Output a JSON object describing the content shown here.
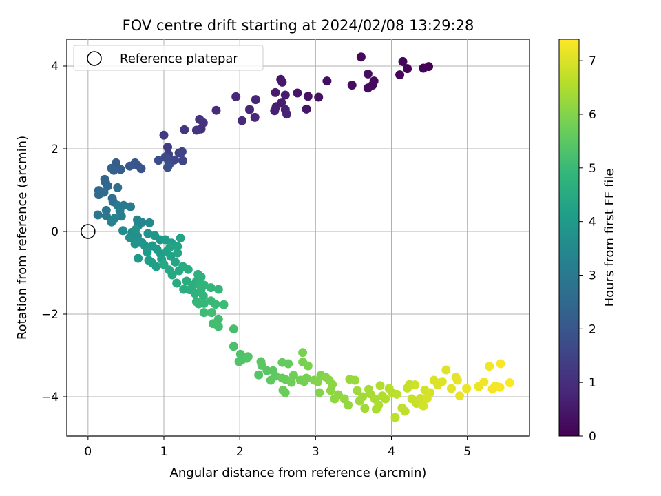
{
  "chart_data": {
    "type": "scatter",
    "title": "FOV centre drift starting at 2024/02/08 13:29:28",
    "xlabel": "Angular distance from reference (arcmin)",
    "ylabel": "Rotation from reference (arcmin)",
    "xlim": [
      -0.28,
      5.82
    ],
    "ylim": [
      -4.95,
      4.65
    ],
    "xticks": [
      0,
      1,
      2,
      3,
      4,
      5
    ],
    "yticks": [
      -4,
      -2,
      0,
      2,
      4
    ],
    "xtick_labels": [
      "0",
      "1",
      "2",
      "3",
      "4",
      "5"
    ],
    "ytick_labels": [
      "−4",
      "−2",
      "0",
      "2",
      "4"
    ],
    "grid": true,
    "legend": {
      "position": "top-left",
      "entries": [
        {
          "label": "Reference platepar",
          "marker": "open-circle"
        }
      ]
    },
    "reference_point": {
      "x": 0,
      "y": 0
    },
    "colorbar": {
      "label": "Hours from first FF file",
      "range": [
        0,
        7.4
      ],
      "ticks": [
        0,
        1,
        2,
        3,
        4,
        5,
        6,
        7
      ],
      "tick_labels": [
        "0",
        "1",
        "2",
        "3",
        "4",
        "5",
        "6",
        "7"
      ],
      "colormap": "viridis",
      "stops": [
        "#440154",
        "#482878",
        "#3e4989",
        "#31688e",
        "#26828e",
        "#1f9e89",
        "#35b779",
        "#6ece58",
        "#b5de2b",
        "#fde725"
      ]
    },
    "points": [
      [
        4.49,
        3.99,
        0.02
      ],
      [
        4.42,
        3.95,
        0.05
      ],
      [
        4.21,
        3.94,
        0.08
      ],
      [
        4.15,
        4.11,
        0.1
      ],
      [
        4.11,
        3.79,
        0.12
      ],
      [
        3.6,
        4.22,
        0.15
      ],
      [
        3.77,
        3.64,
        0.18
      ],
      [
        3.75,
        3.54,
        0.2
      ],
      [
        3.69,
        3.47,
        0.22
      ],
      [
        3.69,
        3.81,
        0.25
      ],
      [
        3.48,
        3.54,
        0.28
      ],
      [
        3.15,
        3.64,
        0.3
      ],
      [
        3.04,
        3.25,
        0.33
      ],
      [
        2.9,
        3.27,
        0.36
      ],
      [
        2.88,
        2.96,
        0.4
      ],
      [
        2.76,
        3.35,
        0.43
      ],
      [
        2.54,
        3.68,
        0.46
      ],
      [
        2.56,
        3.61,
        0.5
      ],
      [
        2.47,
        3.36,
        0.53
      ],
      [
        2.6,
        3.3,
        0.56
      ],
      [
        2.55,
        3.12,
        0.6
      ],
      [
        2.48,
        3.02,
        0.63
      ],
      [
        2.46,
        2.92,
        0.66
      ],
      [
        2.6,
        2.95,
        0.7
      ],
      [
        2.62,
        2.84,
        0.73
      ],
      [
        2.21,
        3.19,
        0.76
      ],
      [
        2.13,
        2.95,
        0.8
      ],
      [
        1.95,
        3.26,
        0.83
      ],
      [
        2.2,
        2.76,
        0.86
      ],
      [
        2.03,
        2.68,
        0.9
      ],
      [
        1.69,
        2.93,
        0.95
      ],
      [
        1.49,
        2.48,
        1.0
      ],
      [
        1.52,
        2.63,
        1.05
      ],
      [
        1.47,
        2.71,
        1.1
      ],
      [
        1.43,
        2.45,
        1.15
      ],
      [
        1.27,
        2.46,
        1.2
      ],
      [
        1.0,
        2.33,
        1.3
      ],
      [
        1.05,
        2.04,
        1.35
      ],
      [
        1.06,
        1.87,
        1.4
      ],
      [
        1.2,
        1.9,
        1.45
      ],
      [
        1.24,
        1.93,
        1.5
      ],
      [
        1.25,
        1.71,
        1.55
      ],
      [
        1.14,
        1.73,
        1.6
      ],
      [
        1.06,
        1.72,
        1.65
      ],
      [
        1.02,
        1.8,
        1.7
      ],
      [
        0.93,
        1.72,
        1.75
      ],
      [
        1.07,
        1.62,
        1.8
      ],
      [
        1.05,
        1.55,
        1.85
      ],
      [
        0.7,
        1.52,
        1.9
      ],
      [
        0.65,
        1.6,
        1.95
      ],
      [
        0.62,
        1.66,
        2.0
      ],
      [
        0.55,
        1.58,
        2.05
      ],
      [
        0.37,
        1.66,
        2.15
      ],
      [
        0.43,
        1.5,
        2.2
      ],
      [
        0.34,
        1.48,
        2.25
      ],
      [
        0.31,
        1.53,
        2.3
      ],
      [
        0.22,
        1.26,
        2.35
      ],
      [
        0.23,
        1.19,
        2.4
      ],
      [
        0.26,
        1.1,
        2.45
      ],
      [
        0.14,
        0.99,
        2.5
      ],
      [
        0.14,
        0.89,
        2.55
      ],
      [
        0.21,
        0.95,
        2.6
      ],
      [
        0.32,
        0.8,
        2.65
      ],
      [
        0.39,
        1.06,
        2.7
      ],
      [
        0.33,
        0.72,
        2.75
      ],
      [
        0.24,
        0.51,
        2.85
      ],
      [
        0.13,
        0.4,
        2.9
      ],
      [
        0.24,
        0.38,
        2.95
      ],
      [
        0.39,
        0.63,
        3.0
      ],
      [
        0.47,
        0.63,
        3.05
      ],
      [
        0.56,
        0.6,
        3.1
      ],
      [
        0.42,
        0.5,
        3.15
      ],
      [
        0.44,
        0.37,
        3.2
      ],
      [
        0.35,
        0.32,
        3.25
      ],
      [
        0.31,
        0.23,
        3.3
      ],
      [
        0.65,
        0.28,
        3.35
      ],
      [
        0.66,
        0.14,
        3.4
      ],
      [
        0.71,
        0.22,
        3.45
      ],
      [
        0.81,
        0.21,
        3.5
      ],
      [
        0.46,
        0.02,
        3.55
      ],
      [
        0.58,
        -0.02,
        3.6
      ],
      [
        0.65,
        -0.11,
        3.65
      ],
      [
        0.55,
        -0.15,
        3.7
      ],
      [
        0.63,
        0.05,
        3.75
      ],
      [
        0.67,
        -0.24,
        3.75
      ],
      [
        0.79,
        -0.05,
        3.8
      ],
      [
        0.62,
        -0.3,
        3.8
      ],
      [
        0.75,
        -0.35,
        3.85
      ],
      [
        0.71,
        -0.27,
        3.85
      ],
      [
        0.88,
        -0.1,
        3.9
      ],
      [
        0.95,
        -0.2,
        3.9
      ],
      [
        0.85,
        -0.35,
        3.95
      ],
      [
        0.66,
        -0.65,
        3.95
      ],
      [
        0.78,
        -0.5,
        4.0
      ],
      [
        0.91,
        -0.43,
        4.0
      ],
      [
        0.96,
        -0.55,
        4.05
      ],
      [
        1.02,
        -0.2,
        4.05
      ],
      [
        1.1,
        -0.28,
        4.1
      ],
      [
        0.8,
        -0.7,
        4.1
      ],
      [
        0.84,
        -0.75,
        4.15
      ],
      [
        0.9,
        -0.85,
        4.15
      ],
      [
        0.97,
        -0.67,
        4.2
      ],
      [
        1.04,
        -0.48,
        4.2
      ],
      [
        1.09,
        -0.6,
        4.25
      ],
      [
        1.08,
        -0.38,
        4.25
      ],
      [
        1.18,
        -0.36,
        4.3
      ],
      [
        1.22,
        -0.16,
        4.3
      ],
      [
        1.15,
        -0.74,
        4.35
      ],
      [
        1.18,
        -0.52,
        4.35
      ],
      [
        1.0,
        -0.8,
        4.4
      ],
      [
        1.07,
        -0.93,
        4.4
      ],
      [
        1.11,
        -1.05,
        4.45
      ],
      [
        1.2,
        -0.95,
        4.45
      ],
      [
        1.25,
        -0.85,
        4.5
      ],
      [
        1.17,
        -1.25,
        4.5
      ],
      [
        1.3,
        -1.2,
        4.55
      ],
      [
        1.32,
        -0.92,
        4.55
      ],
      [
        1.26,
        -1.4,
        4.6
      ],
      [
        1.34,
        -1.41,
        4.6
      ],
      [
        1.38,
        -1.3,
        4.65
      ],
      [
        1.43,
        -1.2,
        4.65
      ],
      [
        1.45,
        -1.04,
        4.7
      ],
      [
        1.49,
        -1.1,
        4.7
      ],
      [
        1.41,
        -1.5,
        4.75
      ],
      [
        1.47,
        -1.29,
        4.75
      ],
      [
        1.53,
        -1.3,
        4.8
      ],
      [
        1.49,
        -1.41,
        4.8
      ],
      [
        1.52,
        -1.56,
        4.85
      ],
      [
        1.62,
        -1.36,
        4.85
      ],
      [
        1.72,
        -1.4,
        4.9
      ],
      [
        1.43,
        -1.7,
        4.9
      ],
      [
        1.46,
        -1.75,
        4.95
      ],
      [
        1.53,
        -1.74,
        4.95
      ],
      [
        1.62,
        -1.68,
        5.0
      ],
      [
        1.68,
        -1.76,
        5.0
      ],
      [
        1.79,
        -1.77,
        5.05
      ],
      [
        1.53,
        -1.96,
        5.05
      ],
      [
        1.63,
        -1.96,
        5.1
      ],
      [
        1.72,
        -2.12,
        5.1
      ],
      [
        1.65,
        -2.23,
        5.15
      ],
      [
        1.72,
        -2.3,
        5.15
      ],
      [
        1.92,
        -2.36,
        5.2
      ],
      [
        1.92,
        -2.78,
        5.25
      ],
      [
        2.01,
        -2.97,
        5.3
      ],
      [
        2.02,
        -3.12,
        5.3
      ],
      [
        2.09,
        -3.07,
        5.35
      ],
      [
        1.99,
        -3.15,
        5.35
      ],
      [
        2.11,
        -3.03,
        5.4
      ],
      [
        2.25,
        -3.47,
        5.4
      ],
      [
        2.36,
        -3.37,
        5.45
      ],
      [
        2.28,
        -3.15,
        5.45
      ],
      [
        2.29,
        -3.24,
        5.5
      ],
      [
        2.44,
        -3.37,
        5.5
      ],
      [
        2.47,
        -3.5,
        5.55
      ],
      [
        2.41,
        -3.6,
        5.55
      ],
      [
        2.56,
        -3.17,
        5.6
      ],
      [
        2.64,
        -3.2,
        5.6
      ],
      [
        2.56,
        -3.55,
        5.65
      ],
      [
        2.61,
        -3.59,
        5.65
      ],
      [
        2.57,
        -3.84,
        5.7
      ],
      [
        2.6,
        -3.9,
        5.7
      ],
      [
        2.68,
        -3.65,
        5.75
      ],
      [
        2.71,
        -3.48,
        5.75
      ],
      [
        2.8,
        -3.6,
        5.8
      ],
      [
        2.85,
        -3.63,
        5.8
      ],
      [
        2.88,
        -3.55,
        5.85
      ],
      [
        2.83,
        -3.16,
        5.85
      ],
      [
        2.9,
        -3.25,
        5.9
      ],
      [
        2.83,
        -2.93,
        5.9
      ],
      [
        2.98,
        -3.6,
        5.95
      ],
      [
        3.07,
        -3.48,
        5.95
      ],
      [
        3.03,
        -3.64,
        6.0
      ],
      [
        3.05,
        -3.9,
        6.0
      ],
      [
        3.13,
        -3.52,
        6.05
      ],
      [
        3.18,
        -3.6,
        6.05
      ],
      [
        3.22,
        -3.7,
        6.1
      ],
      [
        3.2,
        -3.85,
        6.1
      ],
      [
        3.25,
        -4.05,
        6.15
      ],
      [
        3.3,
        -3.95,
        6.15
      ],
      [
        3.38,
        -4.05,
        6.2
      ],
      [
        3.43,
        -4.2,
        6.2
      ],
      [
        3.45,
        -3.58,
        6.25
      ],
      [
        3.52,
        -3.6,
        6.25
      ],
      [
        3.55,
        -3.85,
        6.3
      ],
      [
        3.58,
        -4.1,
        6.3
      ],
      [
        3.62,
        -4.0,
        6.35
      ],
      [
        3.65,
        -4.28,
        6.35
      ],
      [
        3.7,
        -3.82,
        6.4
      ],
      [
        3.72,
        -3.93,
        6.4
      ],
      [
        3.78,
        -4.05,
        6.45
      ],
      [
        3.8,
        -4.3,
        6.45
      ],
      [
        3.83,
        -4.2,
        6.5
      ],
      [
        3.88,
        -3.98,
        6.5
      ],
      [
        3.85,
        -3.73,
        6.55
      ],
      [
        3.92,
        -4.05,
        6.55
      ],
      [
        3.97,
        -3.8,
        6.6
      ],
      [
        4.01,
        -3.9,
        6.6
      ],
      [
        4.05,
        -4.5,
        6.65
      ],
      [
        4.07,
        -3.94,
        6.65
      ],
      [
        4.14,
        -4.27,
        6.7
      ],
      [
        4.18,
        -4.35,
        6.7
      ],
      [
        4.21,
        -3.79,
        6.75
      ],
      [
        4.24,
        -3.7,
        6.75
      ],
      [
        4.27,
        -4.05,
        6.8
      ],
      [
        4.33,
        -4.16,
        6.8
      ],
      [
        4.31,
        -3.71,
        6.85
      ],
      [
        4.38,
        -4.04,
        6.85
      ],
      [
        4.42,
        -4.22,
        6.9
      ],
      [
        4.44,
        -3.84,
        6.9
      ],
      [
        4.47,
        -4.04,
        6.95
      ],
      [
        4.51,
        -3.9,
        6.95
      ],
      [
        4.56,
        -3.6,
        7.0
      ],
      [
        4.61,
        -3.71,
        7.0
      ],
      [
        4.67,
        -3.63,
        7.05
      ],
      [
        4.72,
        -3.35,
        7.05
      ],
      [
        4.79,
        -3.8,
        7.1
      ],
      [
        4.85,
        -3.53,
        7.1
      ],
      [
        4.87,
        -3.6,
        7.15
      ],
      [
        4.9,
        -3.98,
        7.15
      ],
      [
        4.99,
        -3.8,
        7.2
      ],
      [
        5.15,
        -3.75,
        7.2
      ],
      [
        5.22,
        -3.64,
        7.25
      ],
      [
        5.29,
        -3.26,
        7.25
      ],
      [
        5.33,
        -3.81,
        7.3
      ],
      [
        5.37,
        -3.74,
        7.3
      ],
      [
        5.43,
        -3.77,
        7.32
      ],
      [
        5.44,
        -3.2,
        7.35
      ],
      [
        5.56,
        -3.66,
        7.37
      ]
    ]
  }
}
